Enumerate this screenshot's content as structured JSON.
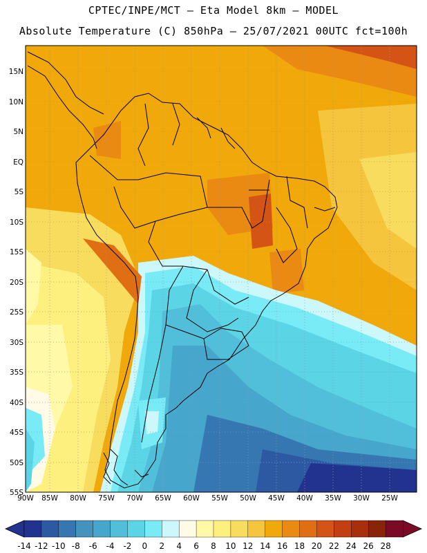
{
  "title": {
    "line1": "CPTEC/INPE/MCT –  Eta Model 8km – MODEL",
    "line2": "Absolute Temperature (C) 850hPa – 25/07/2021 00UTC fct=100h"
  },
  "axes": {
    "lat_labels": [
      "15N",
      "10N",
      "5N",
      "EQ",
      "5S",
      "10S",
      "15S",
      "20S",
      "25S",
      "30S",
      "35S",
      "40S",
      "45S",
      "50S",
      "55S"
    ],
    "lon_labels": [
      "90W",
      "85W",
      "80W",
      "75W",
      "70W",
      "65W",
      "60W",
      "55W",
      "50W",
      "45W",
      "40W",
      "35W",
      "30W",
      "25W"
    ]
  },
  "colorbar": {
    "labels": [
      "-14",
      "-12",
      "-10",
      "-8",
      "-6",
      "-4",
      "-2",
      "0",
      "2",
      "4",
      "6",
      "8",
      "10",
      "12",
      "14",
      "16",
      "18",
      "20",
      "22",
      "24",
      "26",
      "28"
    ],
    "colors": [
      "#21338e",
      "#2c59a1",
      "#3777b1",
      "#4592bd",
      "#47a6cb",
      "#51bfda",
      "#5bd5e6",
      "#78ebf6",
      "#ccf7fb",
      "#fffbe6",
      "#fff9a8",
      "#fdf07e",
      "#f8dc5e",
      "#f5c63d",
      "#f0a80b",
      "#ea8a13",
      "#e06e12",
      "#d35415",
      "#c33e12",
      "#a92e0c",
      "#892409",
      "#7a0a25"
    ]
  }
}
